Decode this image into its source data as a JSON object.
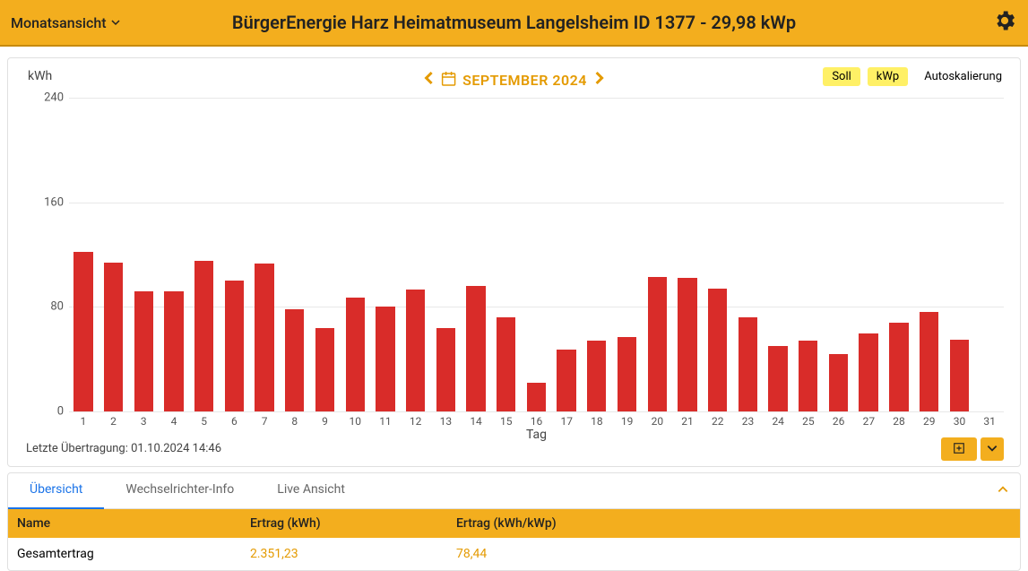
{
  "header": {
    "view_label": "Monatsansicht",
    "title": "BürgerEnergie Harz Heimatmuseum Langelsheim ID 1377 - 29,98 kWp"
  },
  "chart": {
    "type": "bar",
    "y_unit": "kWh",
    "x_label": "Tag",
    "period": "SEPTEMBER 2024",
    "chips": {
      "soll": "Soll",
      "kwp": "kWp",
      "autoscale": "Autoskalierung"
    },
    "y_ticks": [
      0,
      80,
      160,
      240
    ],
    "ylim": [
      0,
      240
    ],
    "bar_color": "#d92c29",
    "grid_color": "#e8e8e8",
    "background_color": "#ffffff",
    "days": [
      1,
      2,
      3,
      4,
      5,
      6,
      7,
      8,
      9,
      10,
      11,
      12,
      13,
      14,
      15,
      16,
      17,
      18,
      19,
      20,
      21,
      22,
      23,
      24,
      25,
      26,
      27,
      28,
      29,
      30,
      31
    ],
    "values": [
      122,
      114,
      92,
      92,
      115,
      100,
      113,
      78,
      64,
      87,
      80,
      93,
      64,
      96,
      72,
      22,
      47,
      54,
      57,
      103,
      102,
      94,
      72,
      50,
      54,
      44,
      60,
      68,
      76,
      55,
      0
    ],
    "last_transmission": "Letzte Übertragung: 01.10.2024 14:46"
  },
  "tabs": {
    "overview": "Übersicht",
    "inverter": "Wechselrichter-Info",
    "live": "Live Ansicht"
  },
  "table": {
    "headers": {
      "name": "Name",
      "yield_kwh": "Ertrag (kWh)",
      "yield_kwh_kwp": "Ertrag (kWh/kWp)"
    },
    "rows": [
      {
        "name": "Gesamtertrag",
        "kwh": "2.351,23",
        "kwhkwp": "78,44"
      }
    ]
  }
}
